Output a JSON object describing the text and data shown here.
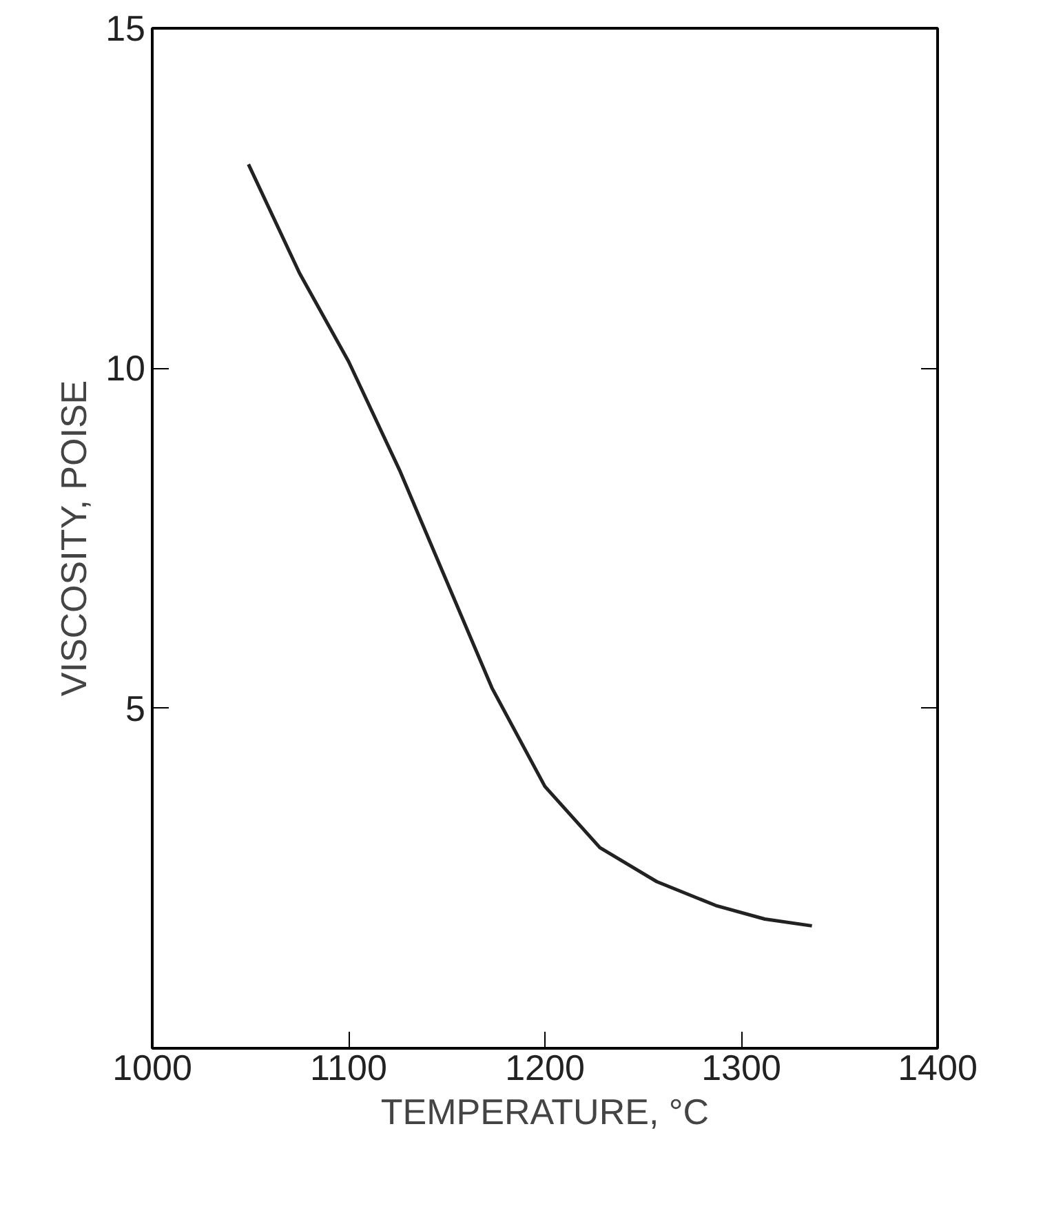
{
  "chart_data": {
    "type": "line",
    "xlabel": "TEMPERATURE, °C",
    "ylabel": "VISCOSITY, POISE",
    "x": [
      1049,
      1075,
      1100,
      1126,
      1148,
      1173,
      1200,
      1228,
      1257,
      1287,
      1312,
      1336
    ],
    "series": [
      {
        "color": "#222222",
        "values": [
          13.0,
          11.4,
          10.1,
          8.5,
          7.0,
          5.3,
          3.85,
          2.95,
          2.45,
          2.1,
          1.9,
          1.8
        ]
      }
    ],
    "xlim": [
      1000,
      1400
    ],
    "ylim": [
      0,
      15
    ],
    "xticks": [
      1000,
      1100,
      1200,
      1300,
      1400
    ],
    "yticks": [
      5,
      10,
      15
    ],
    "grid": false,
    "marker": "none",
    "line_style": "solid"
  }
}
